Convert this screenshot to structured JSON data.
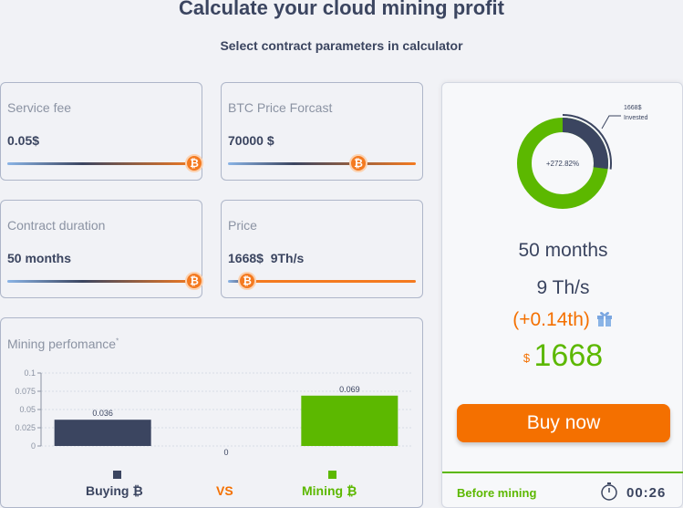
{
  "header": {
    "title": "Calculate your cloud mining profit",
    "subtitle": "Select contract parameters in calculator"
  },
  "cards": {
    "service_fee": {
      "label": "Service fee",
      "value": "0.05$",
      "fill": 1.0
    },
    "btc_price": {
      "label": "BTC Price Forcast",
      "value": "70000 $",
      "fill": 0.7
    },
    "duration": {
      "label": "Contract duration",
      "value": "50 months",
      "fill": 1.0
    },
    "price": {
      "label": "Price",
      "value": "1668$",
      "value2": "9Th/s",
      "fill": 0.1
    }
  },
  "thumb_glyph": "₿",
  "mining_performance": {
    "title": "Mining perfomance",
    "title_mark": "*",
    "buying_label": "Buying ₿",
    "vs_label": "VS",
    "mining_label": "Mining ₿"
  },
  "chart_data": {
    "type": "bar",
    "categories": [
      "Buying ₿",
      "",
      "Mining ₿"
    ],
    "values": [
      0.036,
      0,
      0.069
    ],
    "data_labels": [
      "0.036",
      "0",
      "0.069"
    ],
    "ylim": [
      0,
      0.1
    ],
    "yticks": [
      "0",
      "0.025",
      "0.05",
      "0.075",
      "0.1"
    ],
    "colors": [
      "#3b4560",
      "#3b4560",
      "#5cb800"
    ],
    "grid": true
  },
  "summary": {
    "donut_center": "+272.82%",
    "donut_callout_line1": "1668$",
    "donut_callout_line2": "Invested",
    "donut_invested_fraction": 0.27,
    "months": "50 months",
    "hashrate": "9 Th/s",
    "bonus": "(+0.14th)",
    "currency": "$",
    "price": "1668",
    "buy_button": "Buy now",
    "before_mining": "Before mining",
    "timer": "00:26"
  },
  "colors": {
    "accent_orange": "#f47000",
    "green": "#5cb800",
    "navy": "#3b4560",
    "slider_blue": "#8ab4e6"
  },
  "icons": [
    "bitcoin-icon",
    "gift-icon",
    "clock-icon"
  ]
}
